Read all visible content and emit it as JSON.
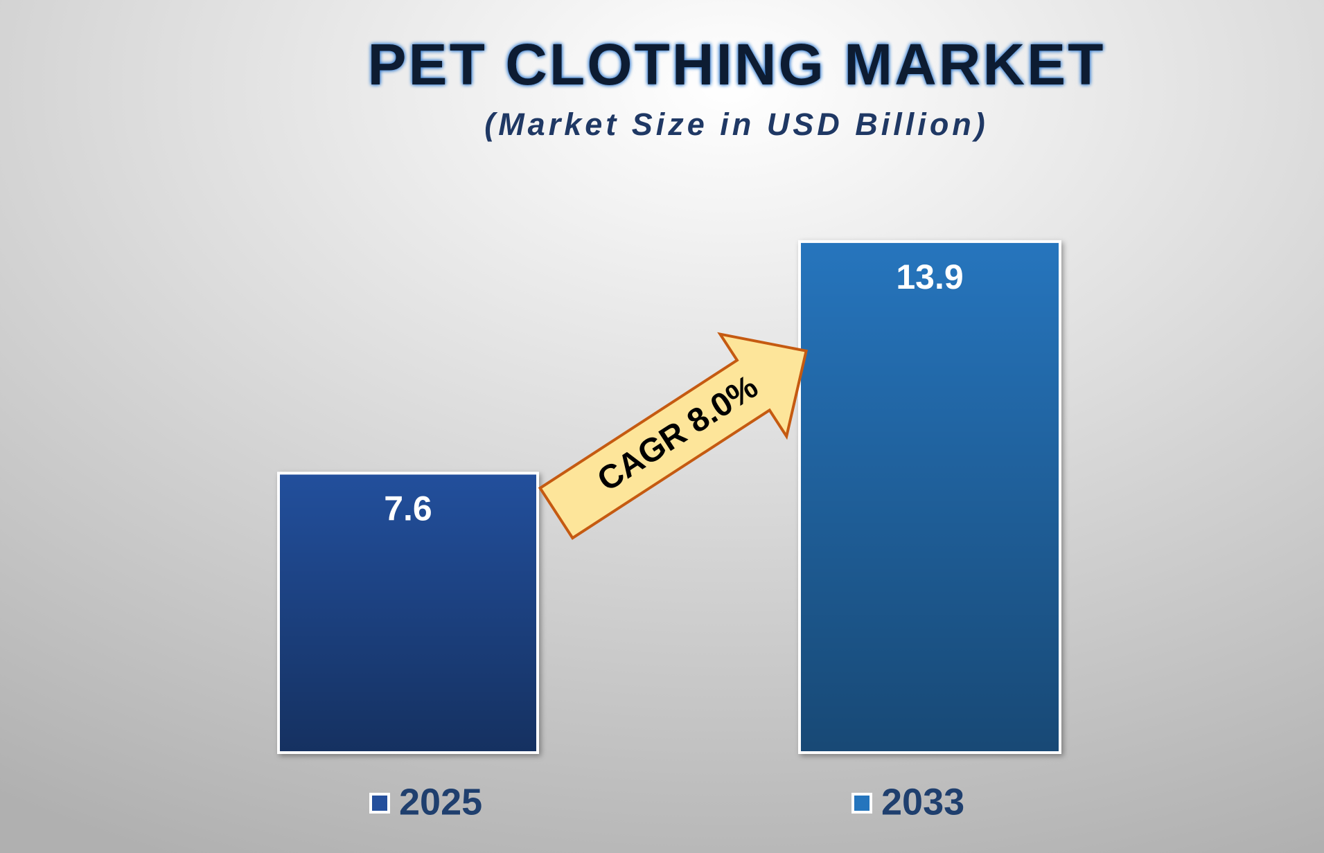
{
  "chart_data": {
    "type": "bar",
    "title": "PET CLOTHING MARKET",
    "subtitle": "(Market Size in USD Billion)",
    "annotation": "CAGR 8.0%",
    "series": [
      {
        "name": "2025",
        "color": "#244f9c",
        "values": [
          7.6
        ]
      },
      {
        "name": "2033",
        "color": "#2575bd",
        "values": [
          13.9
        ]
      }
    ]
  }
}
